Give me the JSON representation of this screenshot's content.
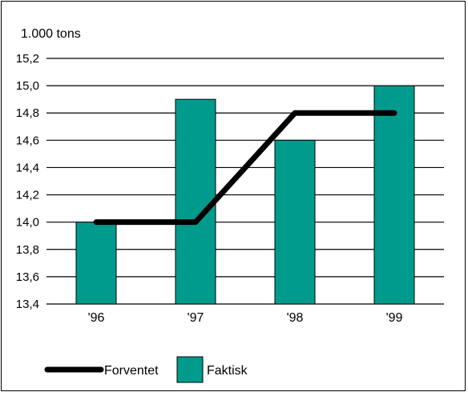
{
  "chart_data": {
    "type": "bar",
    "ylabel": "1.000 tons",
    "categories": [
      "'96",
      "'97",
      "'98",
      "'99"
    ],
    "ylim": [
      13.4,
      15.2
    ],
    "yticks": [
      "13,4",
      "13,6",
      "13,8",
      "14,0",
      "14,2",
      "14,4",
      "14,6",
      "14,8",
      "15,0",
      "15,2"
    ],
    "grid": true,
    "legend_placement": "bottom-left",
    "series": [
      {
        "name": "Faktisk",
        "kind": "bar",
        "color": "#009b8d",
        "values": [
          14.0,
          14.9,
          14.6,
          15.0
        ]
      },
      {
        "name": "Forventet",
        "kind": "line",
        "color": "#000000",
        "values": [
          14.0,
          14.0,
          14.8,
          14.8
        ]
      }
    ]
  }
}
